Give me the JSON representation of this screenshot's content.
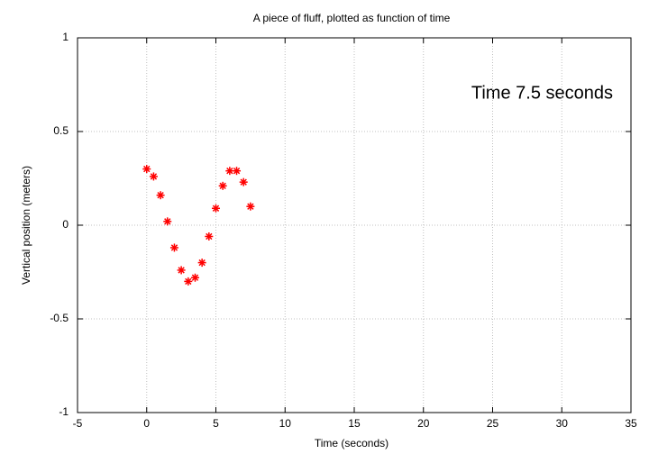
{
  "chart_data": {
    "type": "scatter",
    "title": "A piece of fluff, plotted as function of time",
    "xlabel": "Time (seconds)",
    "ylabel": "Vertical position (meters)",
    "annotation": "Time  7.5 seconds",
    "x": [
      0,
      0.5,
      1,
      1.5,
      2,
      2.5,
      3,
      3.5,
      4,
      4.5,
      5,
      5.5,
      6,
      6.5,
      7,
      7.5
    ],
    "values": [
      0.3,
      0.26,
      0.16,
      0.02,
      -0.12,
      -0.24,
      -0.3,
      -0.28,
      -0.2,
      -0.06,
      0.09,
      0.21,
      0.29,
      0.29,
      0.23,
      0.1
    ],
    "color": "#ff0000",
    "xlim": [
      -5,
      35
    ],
    "xticks": [
      -5,
      0,
      5,
      10,
      15,
      20,
      25,
      30,
      35
    ],
    "ylim": [
      -1,
      1
    ],
    "yticks": [
      -1,
      -0.5,
      0,
      0.5,
      1
    ],
    "grid": true
  }
}
